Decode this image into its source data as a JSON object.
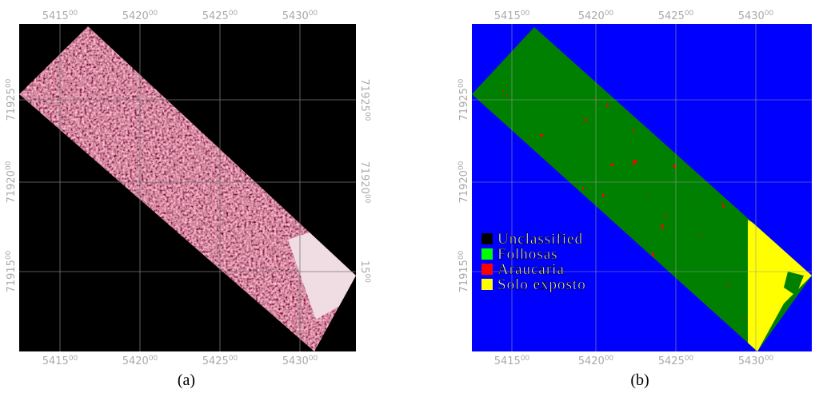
{
  "panels": [
    {
      "caption": "(a)",
      "top_labels": [
        {
          "main": "5415",
          "sup": "00"
        },
        {
          "main": "5420",
          "sup": "00"
        },
        {
          "main": "5425",
          "sup": "00"
        },
        {
          "main": "5430",
          "sup": "00"
        }
      ],
      "bottom_labels": [
        {
          "main": "5415",
          "sup": "00"
        },
        {
          "main": "5420",
          "sup": "00"
        },
        {
          "main": "5425",
          "sup": "00"
        },
        {
          "main": "5430",
          "sup": "00"
        }
      ],
      "left_labels": [
        {
          "main": "71925",
          "sup": "00"
        },
        {
          "main": "71920",
          "sup": "00"
        },
        {
          "main": "71915",
          "sup": "00"
        }
      ],
      "right_labels": [
        {
          "main": "71925",
          "sup": "00"
        },
        {
          "main": "71920",
          "sup": "00"
        },
        {
          "main": "15",
          "sup": "00"
        }
      ]
    },
    {
      "caption": "(b)",
      "top_labels": [
        {
          "main": "5415",
          "sup": "00"
        },
        {
          "main": "5420",
          "sup": "00"
        },
        {
          "main": "5425",
          "sup": "00"
        },
        {
          "main": "5430",
          "sup": "00"
        }
      ],
      "bottom_labels": [
        {
          "main": "5415",
          "sup": "00"
        },
        {
          "main": "5420",
          "sup": "00"
        },
        {
          "main": "5425",
          "sup": "00"
        },
        {
          "main": "5430",
          "sup": "00"
        }
      ],
      "left_labels": [
        {
          "main": "71925",
          "sup": "00"
        },
        {
          "main": "71920",
          "sup": "00"
        },
        {
          "main": "71915",
          "sup": "00"
        }
      ],
      "legend": [
        {
          "label": "Unclassified",
          "color": "#000000"
        },
        {
          "label": "Folhosas",
          "color": "#00ff00"
        },
        {
          "label": "Araucaria",
          "color": "#ff0000"
        },
        {
          "label": "Solo exposto",
          "color": "#ffff00"
        }
      ]
    }
  ]
}
